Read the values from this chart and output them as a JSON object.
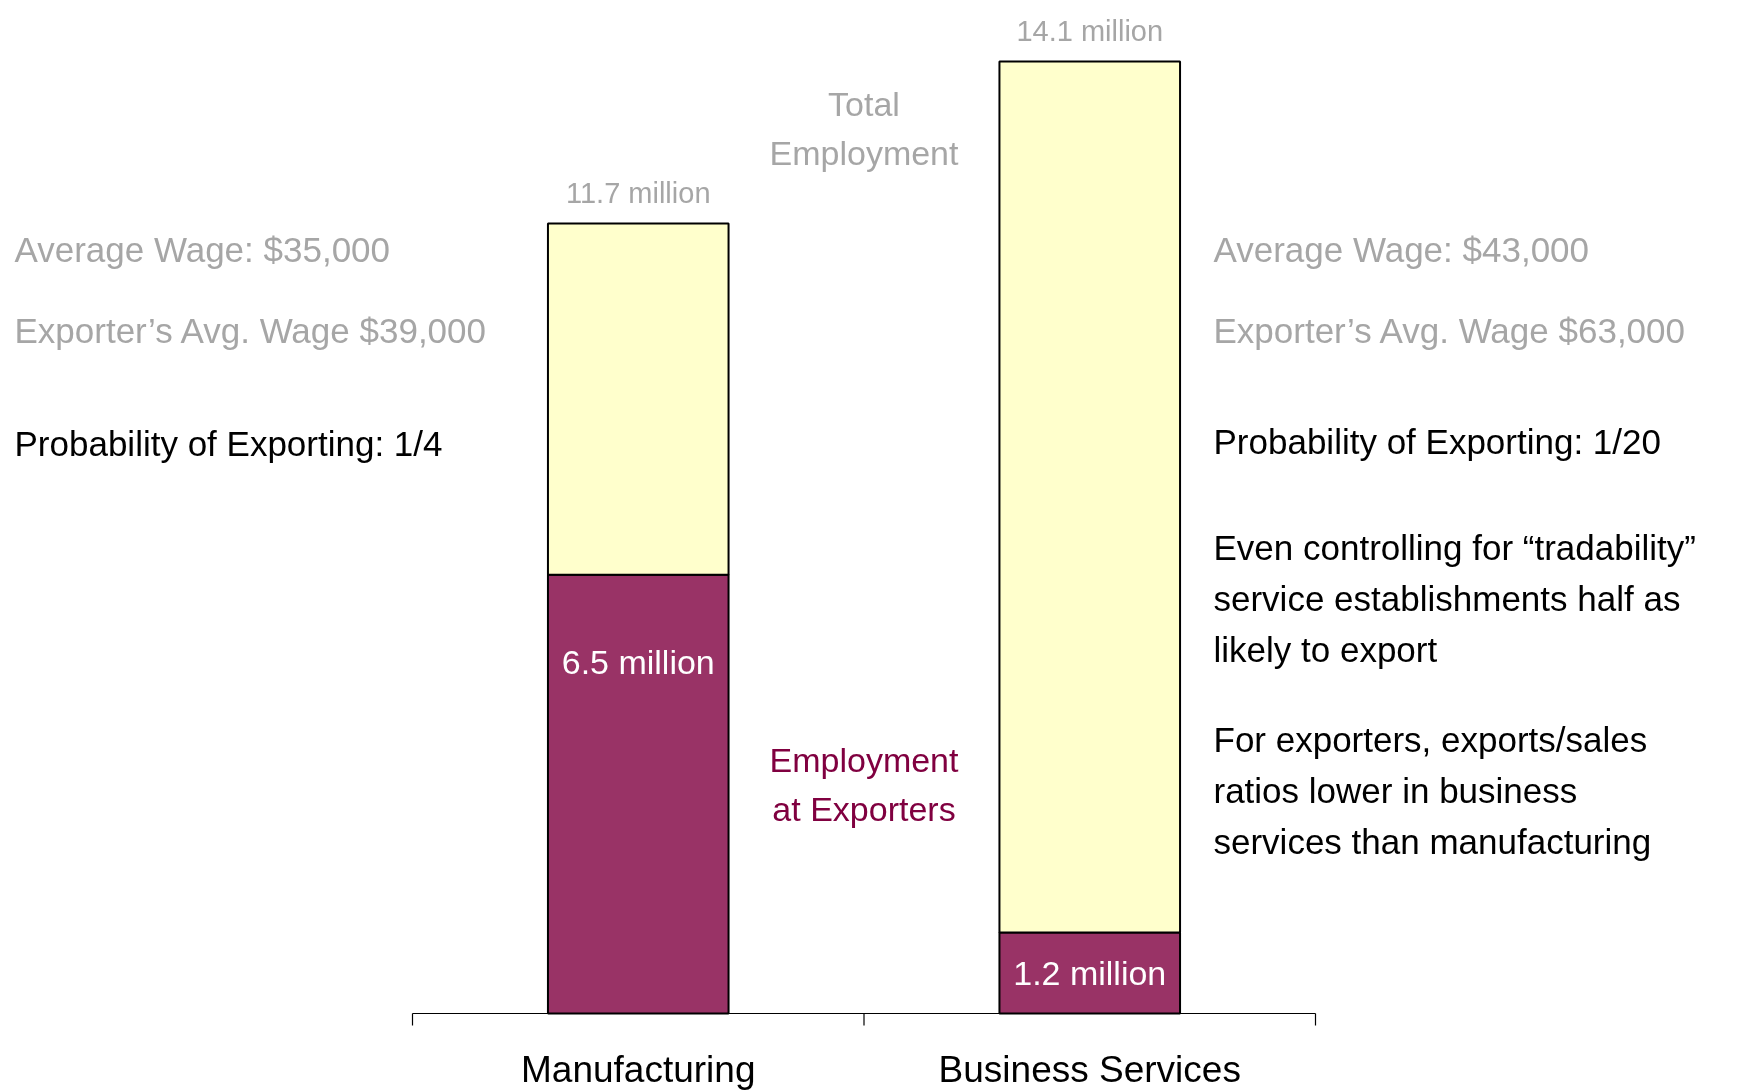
{
  "chart_data": {
    "type": "bar",
    "stacked": true,
    "categories": [
      "Manufacturing",
      "Business Services"
    ],
    "series": [
      {
        "name": "Employment at Exporters",
        "color": "#993366",
        "values": [
          6.5,
          1.2
        ],
        "value_labels": [
          "6.5 million",
          "1.2 million"
        ]
      },
      {
        "name": "Total Employment",
        "color": "#ffffcc",
        "values": [
          5.2,
          12.9
        ]
      }
    ],
    "totals": [
      "11.7 million",
      "14.1 million"
    ],
    "annotations": [
      "Average Wage:  $35,000",
      "Exporter’s Avg. Wage $39,000",
      "Probability of Exporting: 1/4",
      "Average Wage:  $43,000",
      "Exporter’s Avg. Wage $63,000",
      "Probability of Exporting: 1/20",
      "Even controlling for “tradability”\nservice establishments half as\nlikely to export",
      "For exporters, exports/sales\nratios lower in business\nservices than manufacturing"
    ]
  }
}
